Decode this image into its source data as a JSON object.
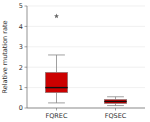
{
  "chart_data": {
    "type": "box",
    "title": "",
    "ylabel": "Relative mutation rate",
    "categories": [
      "FQREC",
      "FQSEC"
    ],
    "q1": [
      0.75,
      0.22
    ],
    "median": [
      1.0,
      0.32
    ],
    "q3": [
      1.75,
      0.42
    ],
    "whisker_low": [
      0.25,
      0.12
    ],
    "whisker_high": [
      2.6,
      0.55
    ],
    "outliers": [
      4.5,
      null
    ],
    "ylim": [
      0,
      5
    ],
    "yticks": [
      0,
      1,
      2,
      3,
      4,
      5
    ],
    "color": "#cc0000",
    "marker": "star"
  }
}
